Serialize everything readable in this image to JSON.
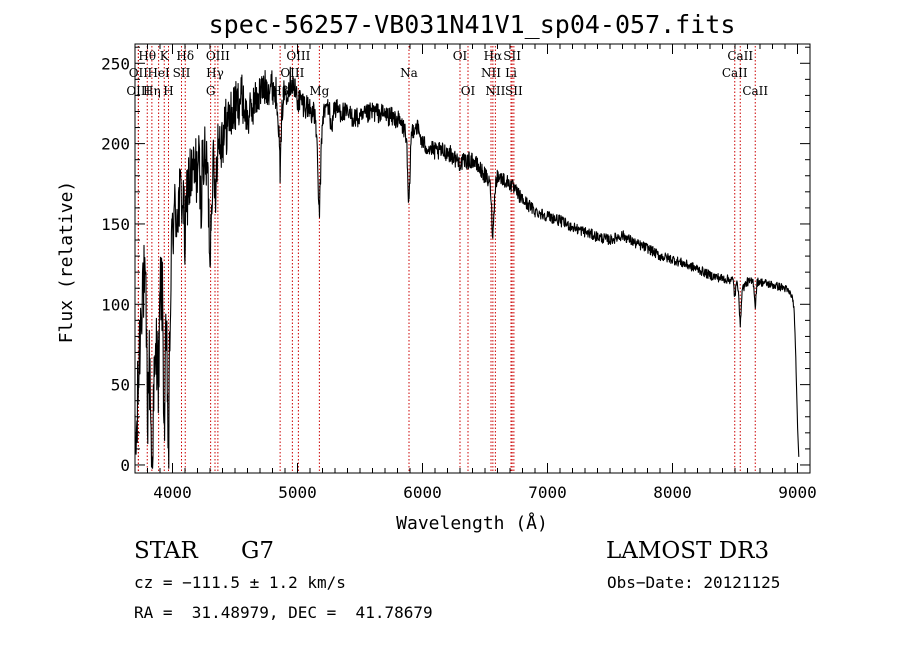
{
  "chart_data": {
    "type": "line",
    "title": "spec-56257-VB031N41V1_sp04-057.fits",
    "xlabel": "Wavelength (Å)",
    "ylabel": "Flux (relative)",
    "xlim": [
      3700,
      9100
    ],
    "ylim": [
      -5,
      262
    ],
    "x_ticks": [
      4000,
      5000,
      6000,
      7000,
      8000,
      9000
    ],
    "y_ticks": [
      0,
      50,
      100,
      150,
      200,
      250
    ],
    "line_color": "#000000",
    "marker_color": "#cc0000",
    "spectrum_anchors": [
      [
        3700,
        5
      ],
      [
        3715,
        20
      ],
      [
        3730,
        60
      ],
      [
        3760,
        120
      ],
      [
        3790,
        95
      ],
      [
        3820,
        55
      ],
      [
        3850,
        40
      ],
      [
        3880,
        85
      ],
      [
        3910,
        115
      ],
      [
        3935,
        80
      ],
      [
        3970,
        65
      ],
      [
        4000,
        150
      ],
      [
        4050,
        162
      ],
      [
        4100,
        175
      ],
      [
        4150,
        178
      ],
      [
        4200,
        185
      ],
      [
        4250,
        190
      ],
      [
        4300,
        180
      ],
      [
        4340,
        200
      ],
      [
        4400,
        205
      ],
      [
        4450,
        215
      ],
      [
        4500,
        222
      ],
      [
        4550,
        230
      ],
      [
        4600,
        215
      ],
      [
        4650,
        225
      ],
      [
        4700,
        232
      ],
      [
        4750,
        235
      ],
      [
        4800,
        236
      ],
      [
        4861,
        225
      ],
      [
        4900,
        232
      ],
      [
        4950,
        240
      ],
      [
        5000,
        228
      ],
      [
        5050,
        225
      ],
      [
        5100,
        222
      ],
      [
        5150,
        215
      ],
      [
        5175,
        195
      ],
      [
        5200,
        218
      ],
      [
        5250,
        225
      ],
      [
        5300,
        222
      ],
      [
        5400,
        218
      ],
      [
        5500,
        215
      ],
      [
        5600,
        220
      ],
      [
        5700,
        218
      ],
      [
        5800,
        215
      ],
      [
        5890,
        205
      ],
      [
        5950,
        212
      ],
      [
        6000,
        200
      ],
      [
        6100,
        195
      ],
      [
        6200,
        195
      ],
      [
        6300,
        188
      ],
      [
        6400,
        190
      ],
      [
        6500,
        180
      ],
      [
        6563,
        172
      ],
      [
        6600,
        180
      ],
      [
        6700,
        175
      ],
      [
        6800,
        165
      ],
      [
        6900,
        158
      ],
      [
        7000,
        155
      ],
      [
        7100,
        152
      ],
      [
        7200,
        148
      ],
      [
        7300,
        145
      ],
      [
        7400,
        142
      ],
      [
        7500,
        140
      ],
      [
        7600,
        143
      ],
      [
        7700,
        138
      ],
      [
        7800,
        135
      ],
      [
        7900,
        130
      ],
      [
        8000,
        128
      ],
      [
        8100,
        125
      ],
      [
        8200,
        122
      ],
      [
        8300,
        118
      ],
      [
        8400,
        116
      ],
      [
        8500,
        115
      ],
      [
        8542,
        108
      ],
      [
        8600,
        114
      ],
      [
        8700,
        114
      ],
      [
        8800,
        112
      ],
      [
        8900,
        110
      ],
      [
        8950,
        106
      ],
      [
        8970,
        100
      ],
      [
        8985,
        70
      ],
      [
        9000,
        25
      ],
      [
        9010,
        5
      ]
    ],
    "absorption_dips": [
      [
        3800,
        -45,
        2
      ],
      [
        3835,
        -50,
        2
      ],
      [
        3889,
        -40,
        2
      ],
      [
        3934,
        -55,
        2
      ],
      [
        3968,
        -60,
        2
      ],
      [
        4101,
        -35,
        3
      ],
      [
        4226,
        -25,
        2
      ],
      [
        4300,
        -45,
        3
      ],
      [
        4340,
        -30,
        3
      ],
      [
        4861,
        -40,
        3
      ],
      [
        5173,
        -38,
        4
      ],
      [
        5270,
        -15,
        3
      ],
      [
        5890,
        -45,
        3
      ],
      [
        6563,
        -28,
        3
      ],
      [
        8498,
        -10,
        2
      ],
      [
        8542,
        -22,
        2
      ],
      [
        8662,
        -15,
        2
      ]
    ],
    "noise_profile": [
      [
        3700,
        30
      ],
      [
        4000,
        26
      ],
      [
        4400,
        20
      ],
      [
        4600,
        13
      ],
      [
        5200,
        7
      ],
      [
        5900,
        6
      ],
      [
        6600,
        5
      ],
      [
        7000,
        3.5
      ],
      [
        9000,
        2.5
      ]
    ],
    "lines": [
      {
        "label": "Hθ",
        "wl": 3798,
        "row": 0
      },
      {
        "label": "OII",
        "wl": 3727,
        "row": 1
      },
      {
        "label": "OIII",
        "wl": 3727,
        "row": 2
      },
      {
        "label": "HeI",
        "wl": 3889,
        "row": 1
      },
      {
        "label": "Hη",
        "wl": 3835,
        "row": 2
      },
      {
        "label": "K",
        "wl": 3934,
        "row": 0
      },
      {
        "label": "H",
        "wl": 3968,
        "row": 2
      },
      {
        "label": "SII",
        "wl": 4072,
        "row": 1
      },
      {
        "label": "Hδ",
        "wl": 4102,
        "row": 0
      },
      {
        "label": "OIII",
        "wl": 4363,
        "row": 0
      },
      {
        "label": "Hγ",
        "wl": 4340,
        "row": 1
      },
      {
        "label": "G",
        "wl": 4305,
        "row": 2
      },
      {
        "label": "OIII",
        "wl": 5007,
        "row": 0
      },
      {
        "label": "OIII",
        "wl": 4959,
        "row": 1
      },
      {
        "label": "Hβ",
        "wl": 4861,
        "row": 2
      },
      {
        "label": "Mg",
        "wl": 5175,
        "row": 2
      },
      {
        "label": "Na",
        "wl": 5892,
        "row": 1
      },
      {
        "label": "OI",
        "wl": 6300,
        "row": 0
      },
      {
        "label": "OI",
        "wl": 6364,
        "row": 2
      },
      {
        "label": "Hα",
        "wl": 6563,
        "row": 0
      },
      {
        "label": "NII",
        "wl": 6548,
        "row": 1
      },
      {
        "label": "NII",
        "wl": 6583,
        "row": 2
      },
      {
        "label": "SII",
        "wl": 6717,
        "row": 0
      },
      {
        "label": "SII",
        "wl": 6731,
        "row": 2
      },
      {
        "label": "Li",
        "wl": 6708,
        "row": 1
      },
      {
        "label": "CaII",
        "wl": 8542,
        "row": 0
      },
      {
        "label": "CaII",
        "wl": 8498,
        "row": 1
      },
      {
        "label": "CaII",
        "wl": 8662,
        "row": 2
      }
    ]
  },
  "info": {
    "object_class": "STAR",
    "subclass": "G7",
    "redshift": "cz = −111.5 ± 1.2 km/s",
    "coordinates": "RA =  31.48979, DEC =  41.78679",
    "survey": "LAMOST DR3",
    "obs_date": "Obs−Date: 20121125"
  }
}
